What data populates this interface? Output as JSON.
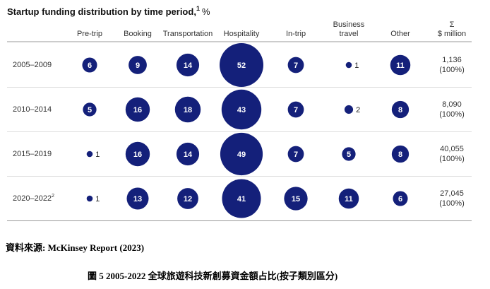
{
  "chart_data": {
    "type": "bubble-table",
    "title": "Startup funding distribution by time period,",
    "title_note": "1",
    "title_unit": "%",
    "categories": [
      "Pre-trip",
      "Booking",
      "Transportation",
      "Hospitality",
      "In-trip",
      "Business travel",
      "Other"
    ],
    "total_header": "Σ",
    "total_unit": "$ million",
    "color": "#14207a",
    "series": [
      {
        "name": "2005–2009",
        "values": [
          6,
          9,
          14,
          52,
          7,
          1,
          11
        ]
      },
      {
        "name": "2010–2014",
        "values": [
          5,
          16,
          18,
          43,
          7,
          2,
          8
        ]
      },
      {
        "name": "2015–2019",
        "values": [
          1,
          16,
          14,
          49,
          7,
          5,
          8
        ]
      },
      {
        "name": "2020–2022",
        "note": "2",
        "values": [
          1,
          13,
          12,
          41,
          15,
          11,
          6
        ]
      }
    ],
    "totals": [
      1136,
      8090,
      40055,
      27045
    ],
    "total_labels": [
      "1,136",
      "8,090",
      "40,055",
      "27,045"
    ],
    "shares": [
      100,
      100,
      100,
      100
    ],
    "share_labels": [
      "(100%)",
      "(100%)",
      "(100%)",
      "(100%)"
    ]
  },
  "source": "資料來源: McKinsey Report (2023)",
  "caption": "圖 5 2005-2022  全球旅遊科技新創募資金額占比(按子類別區分)"
}
